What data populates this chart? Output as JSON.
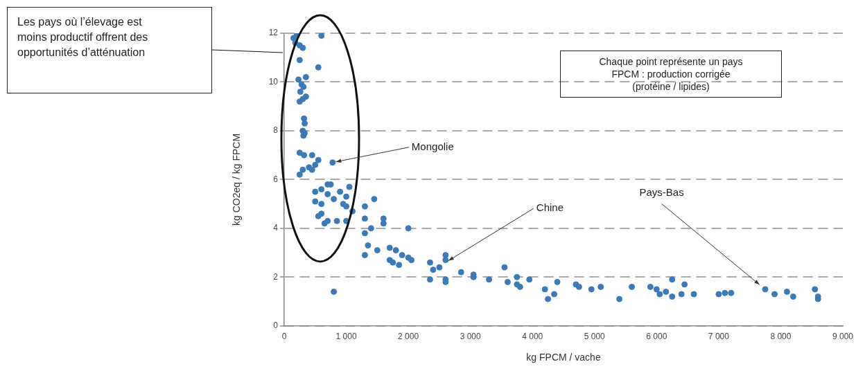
{
  "chart_data": {
    "type": "scatter",
    "xlabel": "kg FPCM / vache",
    "ylabel": "kg CO2eq / kg FPCM",
    "x": [
      150,
      200,
      180,
      250,
      300,
      600,
      250,
      550,
      350,
      230,
      280,
      310,
      260,
      300,
      250,
      350,
      320,
      330,
      300,
      310,
      330,
      250,
      320,
      450,
      550,
      500,
      400,
      300,
      450,
      250,
      780,
      500,
      600,
      700,
      750,
      900,
      1050,
      500,
      600,
      700,
      800,
      1000,
      950,
      1000,
      600,
      550,
      700,
      650,
      850,
      1000,
      1300,
      1300,
      1100,
      1450,
      1400,
      1600,
      1600,
      1300,
      2000,
      1350,
      1300,
      1500,
      1700,
      1800,
      1700,
      1750,
      1850,
      1900,
      2000,
      2050,
      800,
      2350,
      2400,
      2500,
      2600,
      2600,
      2350,
      2600,
      2600,
      2850,
      3050,
      3050,
      3300,
      3550,
      3600,
      3750,
      3750,
      3800,
      3950,
      4200,
      4250,
      4400,
      4350,
      4700,
      4750,
      4950,
      5100,
      5400,
      5600,
      5900,
      6000,
      6050,
      6150,
      6250,
      6250,
      6450,
      6400,
      6600,
      7000,
      7100,
      7200,
      7750,
      7900,
      8100,
      8200,
      8550,
      8600,
      8600
    ],
    "values": [
      11.8,
      11.9,
      11.6,
      11.5,
      11.4,
      11.9,
      10.9,
      10.6,
      10.2,
      10.1,
      9.9,
      9.8,
      9.6,
      9.3,
      9.2,
      9.4,
      8.5,
      8.3,
      8.0,
      7.8,
      7.9,
      7.1,
      7.0,
      7.0,
      6.8,
      6.6,
      6.5,
      6.4,
      6.4,
      6.2,
      6.7,
      5.5,
      5.6,
      5.8,
      5.8,
      5.5,
      5.7,
      5.1,
      5.0,
      5.4,
      5.2,
      5.3,
      5.0,
      4.9,
      4.6,
      4.5,
      4.3,
      4.2,
      4.3,
      4.3,
      4.9,
      4.4,
      4.7,
      5.2,
      4.0,
      4.2,
      4.4,
      3.8,
      4.0,
      3.3,
      2.9,
      3.1,
      3.2,
      3.1,
      2.7,
      2.6,
      2.5,
      2.9,
      2.8,
      2.7,
      1.4,
      2.6,
      2.3,
      2.4,
      2.7,
      2.9,
      1.9,
      1.9,
      1.8,
      2.2,
      2.1,
      2.0,
      1.9,
      2.4,
      1.8,
      2.0,
      1.7,
      1.6,
      1.9,
      1.5,
      1.1,
      1.8,
      1.3,
      1.7,
      1.6,
      1.5,
      1.6,
      1.1,
      1.6,
      1.6,
      1.5,
      1.3,
      1.4,
      1.9,
      1.2,
      1.7,
      1.3,
      1.3,
      1.3,
      1.35,
      1.35,
      1.5,
      1.3,
      1.4,
      1.2,
      1.5,
      1.2,
      1.1
    ],
    "color": "#3a7ab8",
    "marker": "circle",
    "grid": "y",
    "legend": false,
    "xlim": [
      0,
      9000
    ],
    "xticks": [
      0,
      {
        "value": 1000,
        "label": "1 000"
      },
      {
        "value": 2000,
        "label": "2 000"
      },
      {
        "value": 3000,
        "label": "3 000"
      },
      {
        "value": 4000,
        "label": "4 000"
      },
      {
        "value": 5000,
        "label": "5 000"
      },
      {
        "value": 6000,
        "label": "6 000"
      },
      {
        "value": 7000,
        "label": "7 000"
      },
      {
        "value": 8000,
        "label": "8 000"
      },
      {
        "value": 9000,
        "label": "9 000"
      }
    ],
    "ylim": [
      0,
      12
    ],
    "yticks": [
      0,
      2,
      4,
      6,
      8,
      10,
      12
    ],
    "annotations": [
      "Les pays où l’élevage est moins productif offrent des opportunités d’atténuation",
      "Chaque point représente un pays\nFPCM : production corrigée\n(protéine / lipides)",
      {
        "text": "Mongolie",
        "x": 780,
        "y": 6.7
      },
      {
        "text": "Chine",
        "x": 2600,
        "y": 2.6
      },
      {
        "text": "Pays-Bas",
        "x": 7700,
        "y": 1.6
      }
    ]
  }
}
